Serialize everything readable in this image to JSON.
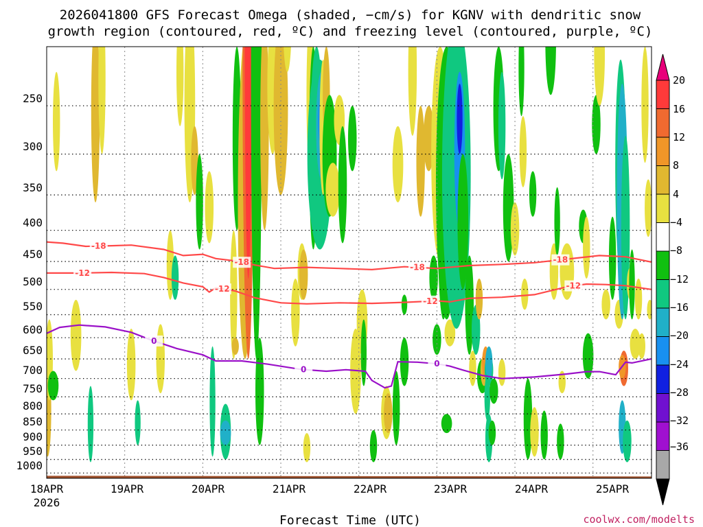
{
  "chart_data": {
    "type": "heatmap",
    "title_line1": "2026041800 GFS Forecast Omega (shaded, −cm/s) for KGNV with dendritic snow",
    "title_line2": "growth region (contoured, red, ºC) and freezing level (contoured, purple, ºC)",
    "xlabel": "Forecast Time (UTC)",
    "credit": "coolwx.com/modelts",
    "x_ticks": [
      "18APR",
      "19APR",
      "20APR",
      "21APR",
      "22APR",
      "23APR",
      "24APR",
      "25APR"
    ],
    "x_year": "2026",
    "xlim_hours": [
      0,
      186
    ],
    "ylim_hpa": [
      1020,
      200
    ],
    "y_ticks": [
      "250",
      "300",
      "350",
      "400",
      "450",
      "500",
      "550",
      "600",
      "650",
      "700",
      "750",
      "800",
      "850",
      "900",
      "950",
      "1000"
    ],
    "colorbar": {
      "labels": [
        "20",
        "16",
        "12",
        "8",
        "4",
        "−4",
        "−8",
        "−12",
        "−16",
        "−20",
        "−24",
        "−28",
        "−32",
        "−36"
      ],
      "colors": [
        "#ff3a3a",
        "#f06a30",
        "#f09628",
        "#e0b830",
        "#e8e040",
        "#ffffff",
        "#10c010",
        "#10c880",
        "#20b0c8",
        "#1890f0",
        "#1020e0",
        "#7010d0",
        "#a010d0",
        "#a8a8a8"
      ],
      "top_arrow": "#e8007a",
      "bottom_arrow": "#000000"
    },
    "contours": [
      {
        "label": "-18",
        "color": "#ff4848",
        "points": [
          [
            0,
            418
          ],
          [
            5,
            420
          ],
          [
            12,
            425
          ],
          [
            20,
            424
          ],
          [
            26,
            423
          ],
          [
            36,
            430
          ],
          [
            42,
            440
          ],
          [
            48,
            438
          ],
          [
            52,
            445
          ],
          [
            58,
            449
          ],
          [
            64,
            456
          ],
          [
            70,
            462
          ],
          [
            80,
            460
          ],
          [
            90,
            462
          ],
          [
            100,
            464
          ],
          [
            110,
            459
          ],
          [
            120,
            462
          ],
          [
            130,
            457
          ],
          [
            140,
            455
          ],
          [
            150,
            452
          ],
          [
            160,
            446
          ],
          [
            170,
            440
          ],
          [
            178,
            442
          ],
          [
            186,
            451
          ]
        ],
        "label_hours": [
          16,
          60,
          114,
          158
        ]
      },
      {
        "label": "-12",
        "color": "#ff4848",
        "points": [
          [
            0,
            470
          ],
          [
            10,
            470
          ],
          [
            20,
            469
          ],
          [
            30,
            471
          ],
          [
            36,
            478
          ],
          [
            42,
            488
          ],
          [
            48,
            495
          ],
          [
            50,
            505
          ],
          [
            52,
            497
          ],
          [
            58,
            503
          ],
          [
            64,
            516
          ],
          [
            72,
            526
          ],
          [
            80,
            528
          ],
          [
            90,
            526
          ],
          [
            100,
            527
          ],
          [
            110,
            525
          ],
          [
            120,
            522
          ],
          [
            124,
            524
          ],
          [
            130,
            517
          ],
          [
            140,
            515
          ],
          [
            150,
            510
          ],
          [
            160,
            495
          ],
          [
            166,
            490
          ],
          [
            172,
            491
          ],
          [
            178,
            493
          ],
          [
            186,
            500
          ]
        ],
        "label_hours": [
          11,
          54,
          118,
          162
        ]
      },
      {
        "label": "0",
        "color": "#9a10c8",
        "points": [
          [
            0,
            590
          ],
          [
            4,
            577
          ],
          [
            10,
            572
          ],
          [
            18,
            576
          ],
          [
            26,
            588
          ],
          [
            32,
            605
          ],
          [
            40,
            625
          ],
          [
            48,
            640
          ],
          [
            52,
            655
          ],
          [
            60,
            655
          ],
          [
            68,
            663
          ],
          [
            78,
            676
          ],
          [
            86,
            681
          ],
          [
            92,
            677
          ],
          [
            98,
            681
          ],
          [
            100,
            705
          ],
          [
            104,
            725
          ],
          [
            106,
            720
          ],
          [
            108,
            657
          ],
          [
            114,
            658
          ],
          [
            120,
            662
          ],
          [
            124,
            668
          ],
          [
            128,
            678
          ],
          [
            134,
            692
          ],
          [
            140,
            700
          ],
          [
            150,
            696
          ],
          [
            160,
            688
          ],
          [
            166,
            682
          ],
          [
            170,
            682
          ],
          [
            175,
            690
          ],
          [
            178,
            658
          ],
          [
            180,
            660
          ],
          [
            186,
            650
          ]
        ],
        "label_hours": [
          33,
          79,
          120
        ]
      }
    ]
  }
}
